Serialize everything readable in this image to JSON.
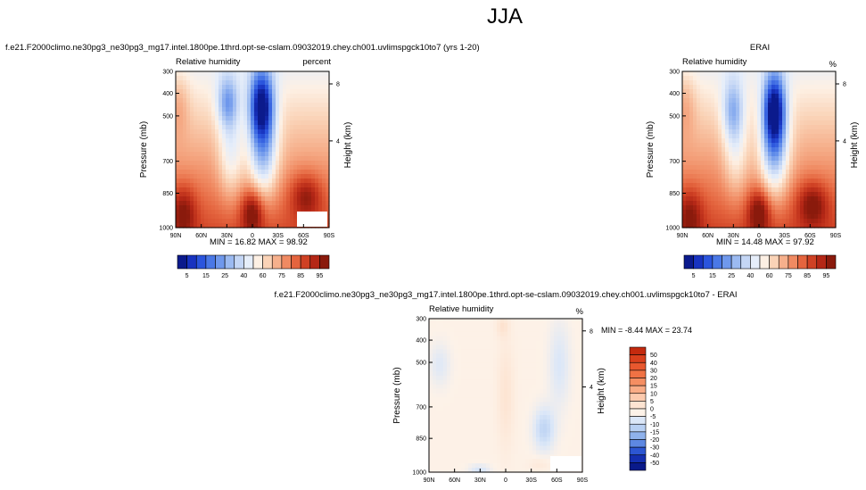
{
  "figure": {
    "title": "JJA"
  },
  "chart_data": [
    {
      "type": "heatmap",
      "title": "f.e21.F2000climo.ne30pg3_ne30pg3_mg17.intel.1800pe.1thrd.opt-se-cslam.09032019.chey.ch001.uvlimspgck10to7 (yrs 1-20)",
      "left_label": "Relative humidity",
      "right_label": "percent",
      "ylabel": "Pressure (mb)",
      "y2label": "Height (km)",
      "xticks": [
        "90N",
        "60N",
        "30N",
        "0",
        "30S",
        "60S",
        "90S"
      ],
      "yticks": [
        "300",
        "400",
        "500",
        "700",
        "850",
        "1000"
      ],
      "y2ticks": [
        "8",
        "4"
      ],
      "stats": "MIN = 16.82   MAX = 98.92",
      "colorbar": {
        "orientation": "horizontal",
        "labels": [
          "5",
          "15",
          "25",
          "40",
          "60",
          "75",
          "85",
          "95"
        ],
        "colors": [
          "#0b1a8c",
          "#1833c0",
          "#2b55dd",
          "#4a78e6",
          "#6f98ec",
          "#9bbaf1",
          "#c4d6f5",
          "#e6eefa",
          "#fdf0e4",
          "#fad3b7",
          "#f6b08c",
          "#f08a62",
          "#e4643e",
          "#cf4124",
          "#b42716",
          "#8a1a0c"
        ]
      },
      "legend": "colorbar-bottom",
      "ylim": [
        1000,
        300
      ]
    },
    {
      "type": "heatmap",
      "title": "ERAI",
      "left_label": "Relative humidity",
      "right_label": "%",
      "ylabel": "Pressure (mb)",
      "y2label": "Height (km)",
      "xticks": [
        "90N",
        "60N",
        "30N",
        "0",
        "30S",
        "60S",
        "90S"
      ],
      "yticks": [
        "300",
        "400",
        "500",
        "700",
        "850",
        "1000"
      ],
      "y2ticks": [
        "8",
        "4"
      ],
      "stats": "MIN = 14.48   MAX = 97.92",
      "colorbar": {
        "orientation": "horizontal",
        "labels": [
          "5",
          "15",
          "25",
          "40",
          "60",
          "75",
          "85",
          "95"
        ],
        "colors": [
          "#0b1a8c",
          "#1833c0",
          "#2b55dd",
          "#4a78e6",
          "#6f98ec",
          "#9bbaf1",
          "#c4d6f5",
          "#e6eefa",
          "#fdf0e4",
          "#fad3b7",
          "#f6b08c",
          "#f08a62",
          "#e4643e",
          "#cf4124",
          "#b42716",
          "#8a1a0c"
        ]
      },
      "legend": "colorbar-bottom",
      "ylim": [
        1000,
        300
      ]
    },
    {
      "type": "heatmap",
      "title": "f.e21.F2000climo.ne30pg3_ne30pg3_mg17.intel.1800pe.1thrd.opt-se-cslam.09032019.chey.ch001.uvlimspgck10to7 - ERAI",
      "left_label": "Relative humidity",
      "right_label": "%",
      "ylabel": "Pressure (mb)",
      "y2label": "Height (km)",
      "xticks": [
        "90N",
        "60N",
        "30N",
        "0",
        "30S",
        "60S",
        "90S"
      ],
      "yticks": [
        "300",
        "400",
        "500",
        "700",
        "850",
        "1000"
      ],
      "y2ticks": [
        "8",
        "4"
      ],
      "stats": "MIN =  -8.44   MAX =  23.74",
      "colorbar": {
        "orientation": "vertical",
        "labels": [
          "50",
          "40",
          "30",
          "20",
          "15",
          "10",
          "5",
          "0",
          "-5",
          "-10",
          "-15",
          "-20",
          "-30",
          "-40",
          "-50"
        ],
        "colors": [
          "#c42a0e",
          "#d9401c",
          "#e8582e",
          "#f07244",
          "#f58e62",
          "#f9ac86",
          "#fccaae",
          "#fde4d2",
          "#fdf2e8",
          "#dbe7f8",
          "#b8d0f3",
          "#8fb2ec",
          "#5d88e2",
          "#2c56d2",
          "#142fb0",
          "#0a1a8a"
        ]
      },
      "legend": "colorbar-right",
      "ylim": [
        1000,
        300
      ]
    }
  ]
}
